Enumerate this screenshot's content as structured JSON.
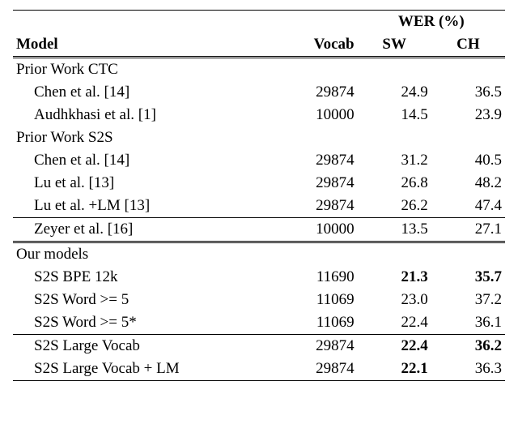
{
  "header": {
    "model": "Model",
    "vocab": "Vocab",
    "wer": "WER (%)",
    "sw": "SW",
    "ch": "CH"
  },
  "sections": {
    "prior_ctc": "Prior Work CTC",
    "prior_s2s": "Prior Work S2S",
    "ours": "Our models"
  },
  "rows": {
    "chen_ctc": {
      "label": "Chen et al. [14]",
      "vocab": "29874",
      "sw": "24.9",
      "ch": "36.5"
    },
    "audh": {
      "label": "Audhkhasi et al. [1]",
      "vocab": "10000",
      "sw": "14.5",
      "ch": "23.9"
    },
    "chen_s2s": {
      "label": "Chen et al. [14]",
      "vocab": "29874",
      "sw": "31.2",
      "ch": "40.5"
    },
    "lu": {
      "label": "Lu et al. [13]",
      "vocab": "29874",
      "sw": "26.8",
      "ch": "48.2"
    },
    "lu_lm": {
      "label": "Lu et al. +LM [13]",
      "vocab": "29874",
      "sw": "26.2",
      "ch": "47.4"
    },
    "zeyer": {
      "label": "Zeyer et al. [16]",
      "vocab": "10000",
      "sw": "13.5",
      "ch": "27.1"
    },
    "bpe12k": {
      "label": "S2S BPE 12k",
      "vocab": "11690",
      "sw": "21.3",
      "ch": "35.7"
    },
    "word5": {
      "label": "S2S Word >= 5",
      "vocab": "11069",
      "sw": "23.0",
      "ch": "37.2"
    },
    "word5s": {
      "label": "S2S Word >= 5*",
      "vocab": "11069",
      "sw": "22.4",
      "ch": "36.1"
    },
    "large": {
      "label": "S2S Large Vocab",
      "vocab": "29874",
      "sw": "22.4",
      "ch": "36.2"
    },
    "large_lm": {
      "label": "S2S Large Vocab + LM",
      "vocab": "29874",
      "sw": "22.1",
      "ch": "36.3"
    }
  },
  "style": {
    "bold_cells": [
      "bpe12k.sw",
      "bpe12k.ch",
      "large.sw",
      "large.ch",
      "large_lm.sw"
    ]
  }
}
